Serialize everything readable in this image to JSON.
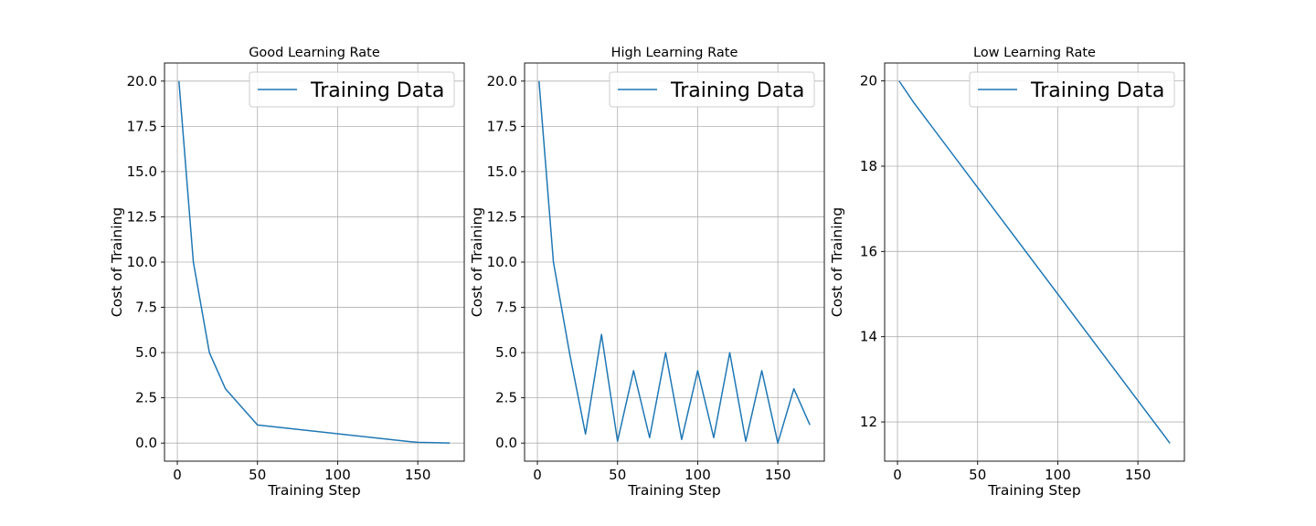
{
  "chart_data": [
    {
      "type": "line",
      "title": "Good Learning Rate",
      "xlabel": "Training Step",
      "ylabel": "Cost of Training",
      "xlim": [
        -8,
        179
      ],
      "ylim": [
        -1.0,
        21.0
      ],
      "xticks": [
        0,
        50,
        100,
        150
      ],
      "xtick_labels": [
        "0",
        "50",
        "100",
        "150"
      ],
      "yticks": [
        0,
        2.5,
        5,
        7.5,
        10,
        12.5,
        15,
        17.5,
        20
      ],
      "ytick_labels": [
        "0.0",
        "2.5",
        "5.0",
        "7.5",
        "10.0",
        "12.5",
        "15.0",
        "17.5",
        "20.0"
      ],
      "grid": true,
      "legend_position": "top-right",
      "series": [
        {
          "name": "Training Data",
          "color": "#1f77b4",
          "x": [
            1,
            10,
            20,
            30,
            50,
            145,
            150,
            170
          ],
          "y": [
            20,
            10,
            5,
            3,
            1,
            0.08,
            0.04,
            0.0
          ]
        }
      ]
    },
    {
      "type": "line",
      "title": "High Learning Rate",
      "xlabel": "Training Step",
      "ylabel": "Cost of Training",
      "xlim": [
        -8,
        179
      ],
      "ylim": [
        -1.0,
        21.0
      ],
      "xticks": [
        0,
        50,
        100,
        150
      ],
      "xtick_labels": [
        "0",
        "50",
        "100",
        "150"
      ],
      "yticks": [
        0,
        2.5,
        5,
        7.5,
        10,
        12.5,
        15,
        17.5,
        20
      ],
      "ytick_labels": [
        "0.0",
        "2.5",
        "5.0",
        "7.5",
        "10.0",
        "12.5",
        "15.0",
        "17.5",
        "20.0"
      ],
      "grid": true,
      "legend_position": "top-right",
      "series": [
        {
          "name": "Training Data",
          "color": "#1f77b4",
          "x": [
            1,
            10,
            20,
            30,
            40,
            50,
            60,
            70,
            80,
            90,
            100,
            110,
            120,
            130,
            140,
            150,
            160,
            170
          ],
          "y": [
            20,
            10,
            5,
            0.5,
            6,
            0.1,
            4,
            0.3,
            5,
            0.2,
            4,
            0.3,
            5,
            0.1,
            4,
            0.0,
            3,
            1
          ]
        }
      ]
    },
    {
      "type": "line",
      "title": "Low Learning Rate",
      "xlabel": "Training Step",
      "ylabel": "Cost of Training",
      "xlim": [
        -8,
        179
      ],
      "ylim": [
        11.08,
        20.42
      ],
      "xticks": [
        0,
        50,
        100,
        150
      ],
      "xtick_labels": [
        "0",
        "50",
        "100",
        "150"
      ],
      "yticks": [
        12,
        14,
        16,
        18,
        20
      ],
      "ytick_labels": [
        "12",
        "14",
        "16",
        "18",
        "20"
      ],
      "grid": true,
      "legend_position": "top-right",
      "series": [
        {
          "name": "Training Data",
          "color": "#1f77b4",
          "x": [
            1,
            10,
            170
          ],
          "y": [
            20,
            19.5,
            11.5
          ]
        }
      ]
    }
  ]
}
